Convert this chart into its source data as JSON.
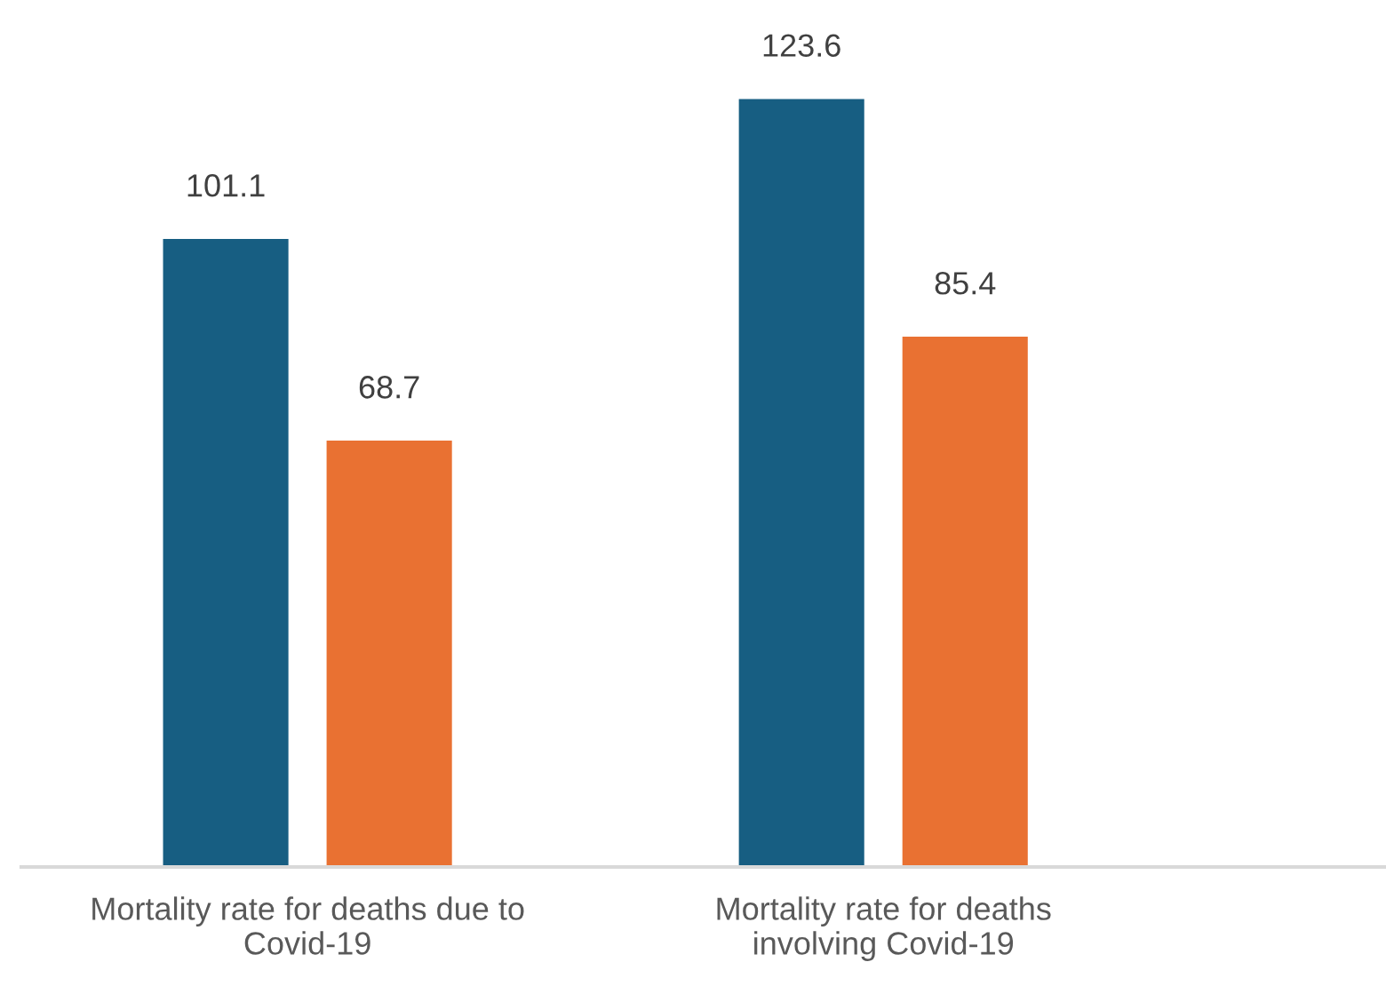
{
  "chart_data": {
    "type": "bar",
    "categories": [
      "Mortality rate for deaths due to\nCovid-19",
      "Mortality rate for deaths\ninvolving Covid-19"
    ],
    "series": [
      {
        "color": "#175e82",
        "values": [
          101.1,
          123.6
        ]
      },
      {
        "color": "#e97132",
        "values": [
          68.7,
          85.4
        ]
      }
    ],
    "data_labels": true,
    "grid": false,
    "legend": false
  }
}
